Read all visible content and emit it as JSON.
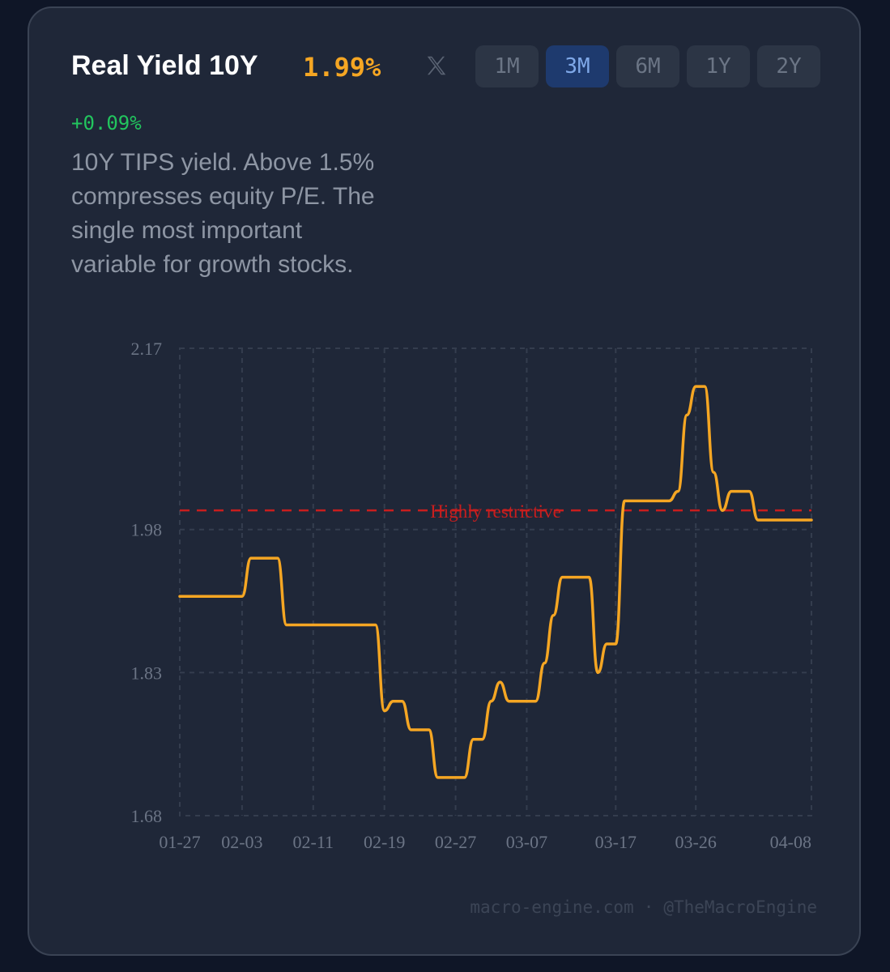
{
  "header": {
    "title": "Real Yield 10Y",
    "value": "1.99%",
    "change": "+0.09%",
    "share_icon": "x-logo-icon"
  },
  "ranges": [
    {
      "label": "1M",
      "active": false
    },
    {
      "label": "3M",
      "active": true
    },
    {
      "label": "6M",
      "active": false
    },
    {
      "label": "1Y",
      "active": false
    },
    {
      "label": "2Y",
      "active": false
    }
  ],
  "description": "10Y TIPS yield. Above 1.5% compresses equity P/E. The single most important variable for growth stocks.",
  "footer": {
    "site": "macro-engine.com",
    "separator": "·",
    "handle": "@TheMacroEngine"
  },
  "colors": {
    "line": "#f5a623",
    "threshold": "#c81e1e",
    "change_positive": "#22c55e",
    "active_button": "#1e3a6e"
  },
  "chart_data": {
    "type": "line",
    "ylim": [
      1.68,
      2.17
    ],
    "y_ticks": [
      "2.17",
      "1.98",
      "1.83",
      "1.68"
    ],
    "x_tick_labels": [
      "01-27",
      "02-03",
      "02-11",
      "02-19",
      "02-27",
      "03-07",
      "03-17",
      "03-26",
      "04-08"
    ],
    "grid": true,
    "threshold": {
      "value": 2.0,
      "label": "Highly restrictive"
    },
    "series": [
      {
        "x": [
          "01-27",
          "01-28",
          "01-29",
          "01-30",
          "01-31",
          "02-01",
          "02-02",
          "02-03",
          "02-04",
          "02-05",
          "02-06",
          "02-07",
          "02-08",
          "02-09",
          "02-10",
          "02-11",
          "02-12",
          "02-13",
          "02-14",
          "02-15",
          "02-16",
          "02-17",
          "02-18",
          "02-19",
          "02-20",
          "02-21",
          "02-22",
          "02-23",
          "02-24",
          "02-25",
          "02-26",
          "02-27",
          "02-28",
          "03-01",
          "03-02",
          "03-03",
          "03-04",
          "03-05",
          "03-06",
          "03-07",
          "03-08",
          "03-09",
          "03-10",
          "03-11",
          "03-12",
          "03-13",
          "03-14",
          "03-15",
          "03-16",
          "03-17",
          "03-18",
          "03-19",
          "03-20",
          "03-21",
          "03-22",
          "03-23",
          "03-24",
          "03-25",
          "03-26",
          "03-27",
          "03-28",
          "03-29",
          "03-30",
          "03-31",
          "04-01",
          "04-02",
          "04-03",
          "04-04",
          "04-05",
          "04-06",
          "04-07",
          "04-08"
        ],
        "y": [
          1.91,
          1.91,
          1.91,
          1.91,
          1.91,
          1.91,
          1.91,
          1.91,
          1.95,
          1.95,
          1.95,
          1.95,
          1.88,
          1.88,
          1.88,
          1.88,
          1.88,
          1.88,
          1.88,
          1.88,
          1.88,
          1.88,
          1.88,
          1.79,
          1.8,
          1.8,
          1.77,
          1.77,
          1.77,
          1.72,
          1.72,
          1.72,
          1.72,
          1.76,
          1.76,
          1.8,
          1.82,
          1.8,
          1.8,
          1.8,
          1.8,
          1.84,
          1.89,
          1.93,
          1.93,
          1.93,
          1.93,
          1.83,
          1.86,
          1.86,
          2.01,
          2.01,
          2.01,
          2.01,
          2.01,
          2.01,
          2.02,
          2.1,
          2.13,
          2.13,
          2.04,
          2.0,
          2.02,
          2.02,
          2.02,
          1.99,
          1.99,
          1.99,
          1.99,
          1.99,
          1.99,
          1.99
        ]
      }
    ]
  }
}
